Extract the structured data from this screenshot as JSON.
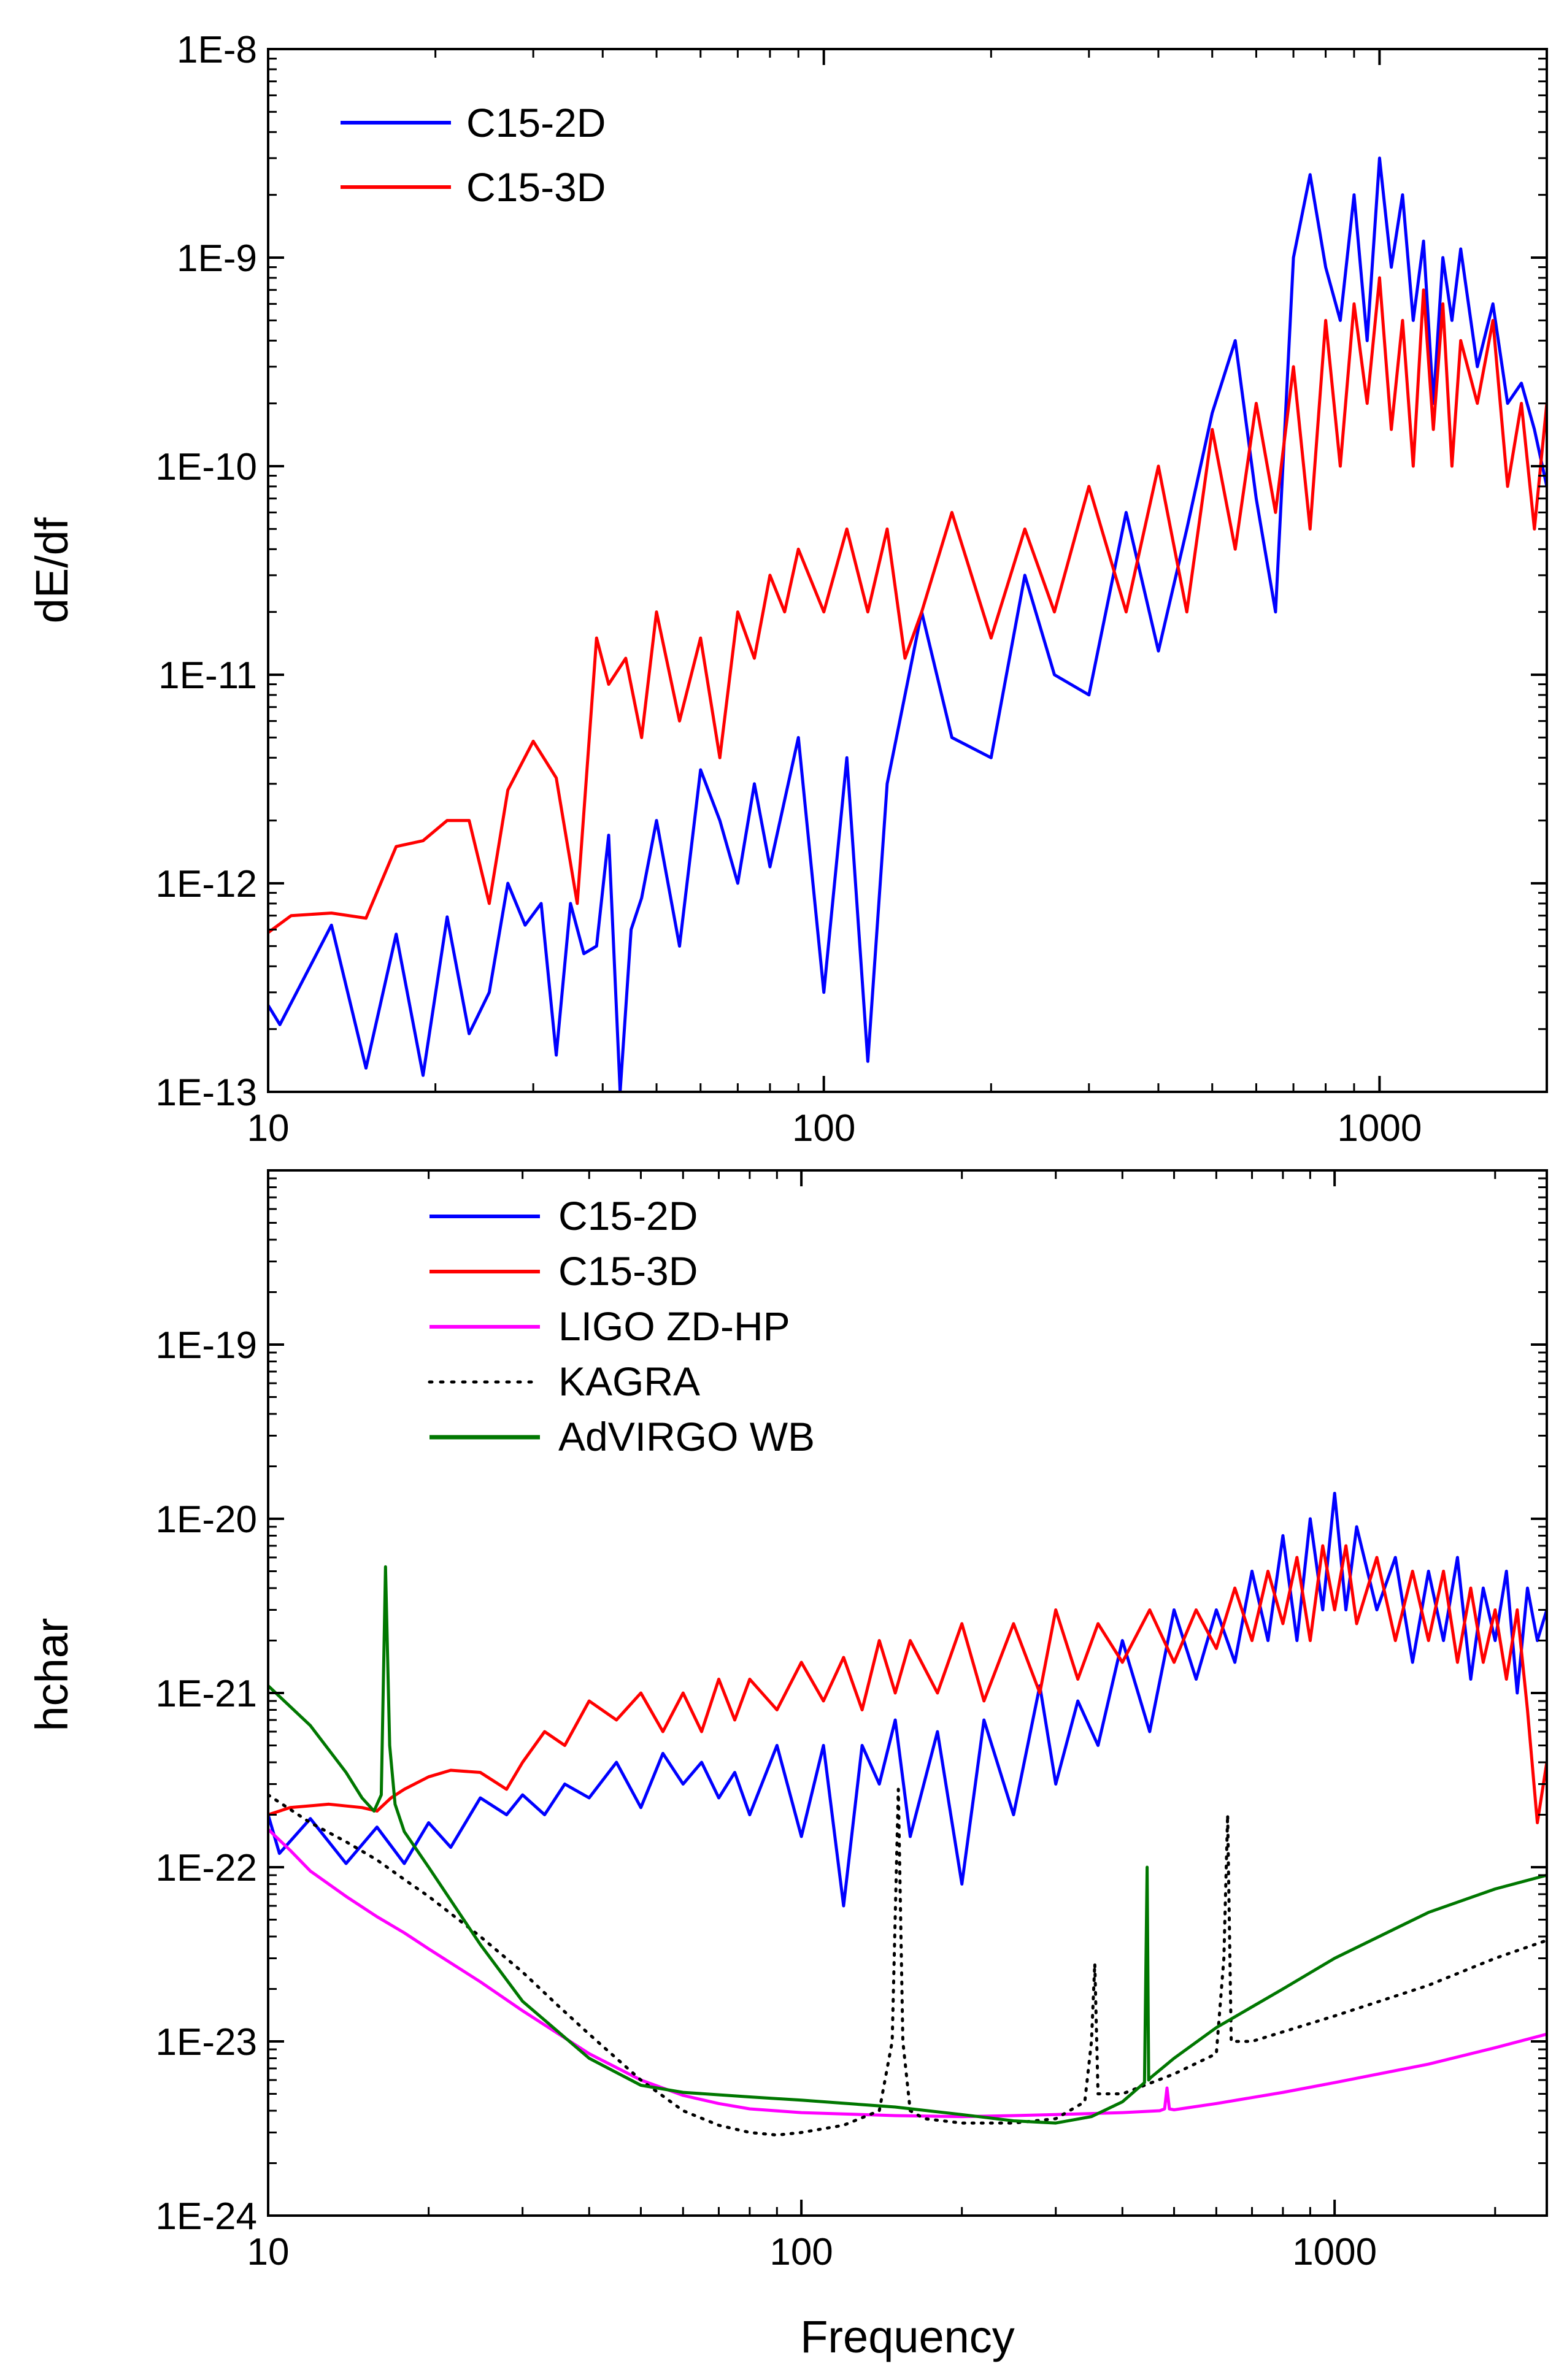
{
  "figure": {
    "xlabel": "Frequency"
  },
  "colors": {
    "c15_2d": "#0000ff",
    "c15_3d": "#ff0000",
    "ligo": "#ff00ff",
    "kagra": "#000000",
    "advirgo": "#007700"
  },
  "chart_data": [
    {
      "type": "line",
      "panel": "top",
      "title": "",
      "xlabel": "",
      "ylabel": "dE/df",
      "xscale": "log",
      "yscale": "log",
      "xlim": [
        10,
        2000
      ],
      "ylim": [
        1e-13,
        1e-08
      ],
      "x_ticks": [
        10,
        100,
        1000
      ],
      "x_tick_labels": [
        "10",
        "100",
        "1000"
      ],
      "y_ticks": [
        1e-13,
        1e-12,
        1e-11,
        1e-10,
        1e-09,
        1e-08
      ],
      "y_tick_labels": [
        "1E-13",
        "1E-12",
        "1E-11",
        "1E-10",
        "1E-9",
        "1E-8"
      ],
      "legend": {
        "placement": "top-left",
        "entries": [
          "C15-2D",
          "C15-3D"
        ]
      },
      "series": [
        {
          "name": "C15-2D",
          "color": "#0000ff",
          "style": "solid",
          "x": [
            10,
            10.5,
            13,
            15,
            17,
            19,
            21,
            23,
            25,
            27,
            29,
            31,
            33,
            35,
            37,
            39,
            41,
            43,
            45,
            47,
            50,
            55,
            60,
            65,
            70,
            75,
            80,
            90,
            100,
            110,
            120,
            130,
            150,
            170,
            200,
            230,
            260,
            300,
            350,
            400,
            450,
            500,
            550,
            600,
            650,
            700,
            750,
            800,
            850,
            900,
            950,
            1000,
            1050,
            1100,
            1150,
            1200,
            1250,
            1300,
            1350,
            1400,
            1500,
            1600,
            1700,
            1800,
            1900,
            2000
          ],
          "y": [
            2.6e-13,
            2.1e-13,
            6.3e-13,
            1.3e-13,
            5.7e-13,
            1.2e-13,
            6.9e-13,
            1.9e-13,
            3e-13,
            1e-12,
            6.3e-13,
            8e-13,
            1.5e-13,
            8e-13,
            4.6e-13,
            5e-13,
            1.7e-12,
            1e-13,
            6e-13,
            8.5e-13,
            2e-12,
            5e-13,
            3.5e-12,
            2e-12,
            1e-12,
            3e-12,
            1.2e-12,
            5e-12,
            3e-13,
            4e-12,
            1.4e-13,
            3e-12,
            2e-11,
            5e-12,
            4e-12,
            3e-11,
            1e-11,
            8e-12,
            6e-11,
            1.3e-11,
            5e-11,
            1.8e-10,
            4e-10,
            7e-11,
            2e-11,
            1e-09,
            2.5e-09,
            9e-10,
            5e-10,
            2e-09,
            4e-10,
            3e-09,
            9e-10,
            2e-09,
            5e-10,
            1.2e-09,
            2e-10,
            1e-09,
            5e-10,
            1.1e-09,
            3e-10,
            6e-10,
            2e-10,
            2.5e-10,
            1.5e-10,
            8e-11
          ]
        },
        {
          "name": "C15-3D",
          "color": "#ff0000",
          "style": "solid",
          "x": [
            10,
            11,
            13,
            15,
            17,
            19,
            21,
            23,
            25,
            27,
            30,
            33,
            36,
            39,
            41,
            44,
            47,
            50,
            55,
            60,
            65,
            70,
            75,
            80,
            85,
            90,
            100,
            110,
            120,
            130,
            140,
            150,
            170,
            200,
            230,
            260,
            300,
            350,
            400,
            450,
            500,
            550,
            600,
            650,
            700,
            750,
            800,
            850,
            900,
            950,
            1000,
            1050,
            1100,
            1150,
            1200,
            1250,
            1300,
            1350,
            1400,
            1500,
            1600,
            1700,
            1800,
            1900,
            2000
          ],
          "y": [
            5.8e-13,
            7e-13,
            7.2e-13,
            6.8e-13,
            1.5e-12,
            1.6e-12,
            2e-12,
            2e-12,
            8e-13,
            2.8e-12,
            4.8e-12,
            3.2e-12,
            8e-13,
            1.5e-11,
            9e-12,
            1.2e-11,
            5e-12,
            2e-11,
            6e-12,
            1.5e-11,
            4e-12,
            2e-11,
            1.2e-11,
            3e-11,
            2e-11,
            4e-11,
            2e-11,
            5e-11,
            2e-11,
            5e-11,
            1.2e-11,
            2e-11,
            6e-11,
            1.5e-11,
            5e-11,
            2e-11,
            8e-11,
            2e-11,
            1e-10,
            2e-11,
            1.5e-10,
            4e-11,
            2e-10,
            6e-11,
            3e-10,
            5e-11,
            5e-10,
            1e-10,
            6e-10,
            2e-10,
            8e-10,
            1.5e-10,
            5e-10,
            1e-10,
            7e-10,
            1.5e-10,
            6e-10,
            1e-10,
            4e-10,
            2e-10,
            5e-10,
            8e-11,
            2e-10,
            5e-11,
            2e-10
          ]
        }
      ]
    },
    {
      "type": "line",
      "panel": "bottom",
      "title": "",
      "xlabel": "Frequency",
      "ylabel": "hchar",
      "xscale": "log",
      "yscale": "log",
      "xlim": [
        10,
        2500
      ],
      "ylim": [
        1e-24,
        1e-18
      ],
      "x_ticks": [
        10,
        100,
        1000
      ],
      "x_tick_labels": [
        "10",
        "100",
        "1000"
      ],
      "y_ticks": [
        1e-24,
        1e-23,
        1e-22,
        1e-21,
        1e-20,
        1e-19
      ],
      "y_tick_labels": [
        "1E-24",
        "1E-23",
        "1E-22",
        "1E-21",
        "1E-20",
        "1E-19"
      ],
      "legend": {
        "placement": "top-left",
        "entries": [
          "C15-2D",
          "C15-3D",
          "LIGO ZD-HP",
          "KAGRA",
          "AdVIRGO WB"
        ]
      },
      "series": [
        {
          "name": "C15-2D",
          "color": "#0000ff",
          "style": "solid",
          "x": [
            10,
            10.5,
            12,
            14,
            16,
            18,
            20,
            22,
            25,
            28,
            30,
            33,
            36,
            40,
            45,
            50,
            55,
            60,
            65,
            70,
            75,
            80,
            90,
            100,
            110,
            120,
            130,
            140,
            150,
            160,
            180,
            200,
            220,
            250,
            280,
            300,
            330,
            360,
            400,
            450,
            500,
            550,
            600,
            650,
            700,
            750,
            800,
            850,
            900,
            950,
            1000,
            1050,
            1100,
            1200,
            1300,
            1400,
            1500,
            1600,
            1700,
            1800,
            1900,
            2000,
            2100,
            2200,
            2300,
            2400,
            2500
          ],
          "y": [
            2e-22,
            1.2e-22,
            1.9e-22,
            1.05e-22,
            1.7e-22,
            1.05e-22,
            1.8e-22,
            1.3e-22,
            2.5e-22,
            2e-22,
            2.6e-22,
            2e-22,
            3e-22,
            2.5e-22,
            4e-22,
            2.2e-22,
            4.5e-22,
            3e-22,
            4e-22,
            2.5e-22,
            3.5e-22,
            2e-22,
            5e-22,
            1.5e-22,
            5e-22,
            6e-23,
            5e-22,
            3e-22,
            7e-22,
            1.5e-22,
            6e-22,
            8e-23,
            7e-22,
            2e-22,
            1.1e-21,
            3e-22,
            9e-22,
            5e-22,
            2e-21,
            6e-22,
            3e-21,
            1.2e-21,
            3e-21,
            1.5e-21,
            5e-21,
            2e-21,
            8e-21,
            2e-21,
            1e-20,
            3e-21,
            1.4e-20,
            3e-21,
            9e-21,
            3e-21,
            6e-21,
            1.5e-21,
            5e-21,
            2e-21,
            6e-21,
            1.2e-21,
            4e-21,
            2e-21,
            5e-21,
            1e-21,
            4e-21,
            2e-21,
            3e-21
          ]
        },
        {
          "name": "C15-3D",
          "color": "#ff0000",
          "style": "solid",
          "x": [
            10,
            11,
            13,
            15,
            16,
            17,
            18,
            20,
            22,
            25,
            28,
            30,
            33,
            36,
            40,
            45,
            50,
            55,
            60,
            65,
            70,
            75,
            80,
            90,
            100,
            110,
            120,
            130,
            140,
            150,
            160,
            180,
            200,
            220,
            250,
            280,
            300,
            330,
            360,
            400,
            450,
            500,
            550,
            600,
            650,
            700,
            750,
            800,
            850,
            900,
            950,
            1000,
            1050,
            1100,
            1200,
            1300,
            1400,
            1500,
            1600,
            1700,
            1800,
            1900,
            2000,
            2100,
            2200,
            2300,
            2400,
            2500
          ],
          "y": [
            2e-22,
            2.2e-22,
            2.3e-22,
            2.2e-22,
            2.1e-22,
            2.5e-22,
            2.8e-22,
            3.3e-22,
            3.6e-22,
            3.5e-22,
            2.8e-22,
            4e-22,
            6e-22,
            5e-22,
            9e-22,
            7e-22,
            1e-21,
            6e-22,
            1e-21,
            6e-22,
            1.2e-21,
            7e-22,
            1.2e-21,
            8e-22,
            1.5e-21,
            9e-22,
            1.6e-21,
            8e-22,
            2e-21,
            1e-21,
            2e-21,
            1e-21,
            2.5e-21,
            9e-22,
            2.5e-21,
            1e-21,
            3e-21,
            1.2e-21,
            2.5e-21,
            1.5e-21,
            3e-21,
            1.5e-21,
            3e-21,
            1.8e-21,
            4e-21,
            2e-21,
            5e-21,
            2.5e-21,
            6e-21,
            2e-21,
            7e-21,
            3e-21,
            7e-21,
            2.5e-21,
            6e-21,
            2e-21,
            5e-21,
            2e-21,
            5e-21,
            1.5e-21,
            4e-21,
            1.5e-21,
            3e-21,
            1.2e-21,
            3e-21,
            8e-22,
            1.8e-22,
            4e-22
          ]
        },
        {
          "name": "LIGO ZD-HP",
          "color": "#ff00ff",
          "style": "solid",
          "x": [
            10,
            11,
            12,
            14,
            16,
            18,
            20,
            25,
            30,
            40,
            50,
            60,
            70,
            80,
            100,
            150,
            200,
            250,
            300,
            400,
            470,
            480,
            485,
            490,
            500,
            600,
            800,
            1000,
            1500,
            2000,
            2500
          ],
          "y": [
            1.65e-22,
            1.25e-22,
            9.5e-23,
            6.8e-23,
            5.2e-23,
            4.2e-23,
            3.4e-23,
            2.2e-23,
            1.5e-23,
            8.5e-24,
            6e-24,
            4.9e-24,
            4.4e-24,
            4.1e-24,
            3.9e-24,
            3.75e-24,
            3.7e-24,
            3.75e-24,
            3.8e-24,
            3.9e-24,
            4e-24,
            4.1e-24,
            5.4e-24,
            4.1e-24,
            4.05e-24,
            4.4e-24,
            5.1e-24,
            5.8e-24,
            7.4e-24,
            9.2e-24,
            1.1e-23
          ]
        },
        {
          "name": "KAGRA",
          "color": "#000000",
          "style": "dotted",
          "x": [
            10,
            12,
            14,
            16,
            18,
            20,
            25,
            30,
            35,
            40,
            50,
            60,
            70,
            80,
            90,
            100,
            120,
            140,
            148,
            152,
            155,
            160,
            170,
            200,
            250,
            300,
            340,
            350,
            355,
            360,
            400,
            500,
            600,
            620,
            630,
            640,
            700,
            1000,
            1500,
            2000,
            2500
          ],
          "y": [
            2.6e-22,
            1.8e-22,
            1.4e-22,
            1.1e-22,
            8.5e-23,
            6.8e-23,
            4e-23,
            2.5e-23,
            1.6e-23,
            1.1e-23,
            6e-24,
            4e-24,
            3.3e-24,
            3e-24,
            2.9e-24,
            3e-24,
            3.3e-24,
            4e-24,
            1e-23,
            2.8e-22,
            1e-23,
            4e-24,
            3.6e-24,
            3.4e-24,
            3.4e-24,
            3.6e-24,
            4.5e-24,
            1e-23,
            2.8e-23,
            5e-24,
            5e-24,
            6.5e-24,
            8.5e-24,
            3e-23,
            2e-22,
            1e-23,
            1e-23,
            1.4e-23,
            2.1e-23,
            3e-23,
            3.8e-23
          ]
        },
        {
          "name": "AdVIRGO WB",
          "color": "#007700",
          "style": "solid",
          "x": [
            10,
            12,
            14,
            15,
            15.8,
            16.3,
            16.6,
            16.9,
            17.3,
            18,
            20,
            25,
            30,
            40,
            50,
            60,
            80,
            100,
            150,
            200,
            250,
            300,
            350,
            400,
            440,
            445,
            448,
            452,
            500,
            600,
            800,
            1000,
            1500,
            2000,
            2500
          ],
          "y": [
            1.1e-21,
            6.5e-22,
            3.5e-22,
            2.5e-22,
            2.1e-22,
            2.6e-22,
            5.3e-21,
            5e-22,
            2.3e-22,
            1.6e-22,
            1e-22,
            3.6e-23,
            1.7e-23,
            8e-24,
            5.6e-24,
            5.1e-24,
            4.8e-24,
            4.6e-24,
            4.2e-24,
            3.8e-24,
            3.5e-24,
            3.4e-24,
            3.7e-24,
            4.5e-24,
            5.8e-24,
            1e-22,
            6e-24,
            6.2e-24,
            8e-24,
            1.2e-23,
            2e-23,
            3e-23,
            5.5e-23,
            7.5e-23,
            9e-23
          ]
        }
      ]
    }
  ]
}
